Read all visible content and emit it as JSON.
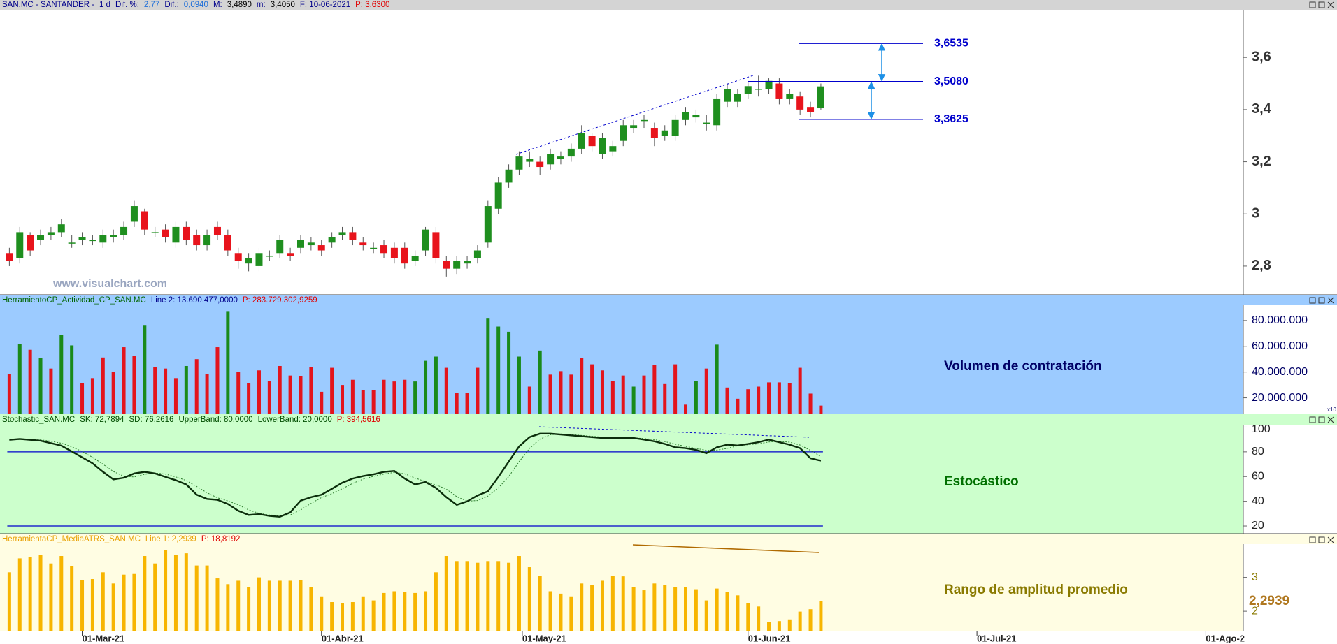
{
  "header": [
    {
      "text": "SAN.MC - SANTANDER -",
      "color": "#00008b"
    },
    {
      "text": "1 d",
      "color": "#00008b"
    },
    {
      "text": "Dif. %:",
      "color": "#00008b"
    },
    {
      "text": "2,77",
      "color": "#1e6fd9"
    },
    {
      "text": "Dif.:",
      "color": "#00008b"
    },
    {
      "text": "0,0940",
      "color": "#1e6fd9"
    },
    {
      "text": "M:",
      "color": "#00008b"
    },
    {
      "text": "3,4890",
      "color": "#000000"
    },
    {
      "text": "m:",
      "color": "#00008b"
    },
    {
      "text": "3,4050",
      "color": "#000000"
    },
    {
      "text": "F: 10-06-2021",
      "color": "#00008b"
    },
    {
      "text": "P: 3,6300",
      "color": "#e00000"
    }
  ],
  "chart_data": [
    {
      "type": "candlestick",
      "watermark": "www.visualchart.com",
      "background": "#ffffff",
      "open": [
        2.85,
        2.83,
        2.92,
        2.9,
        2.92,
        2.93,
        2.89,
        2.9,
        2.9,
        2.89,
        2.91,
        2.92,
        2.97,
        3.01,
        2.93,
        2.94,
        2.89,
        2.95,
        2.92,
        2.88,
        2.95,
        2.92,
        2.85,
        2.81,
        2.8,
        2.84,
        2.85,
        2.85,
        2.87,
        2.88,
        2.88,
        2.89,
        2.92,
        2.93,
        2.89,
        2.87,
        2.88,
        2.87,
        2.87,
        2.82,
        2.86,
        2.93,
        2.82,
        2.79,
        2.81,
        2.83,
        2.89,
        3.02,
        3.12,
        3.17,
        3.2,
        3.2,
        3.19,
        3.21,
        3.22,
        3.25,
        3.3,
        3.23,
        3.24,
        3.28,
        3.33,
        3.36,
        3.33,
        3.3,
        3.3,
        3.36,
        3.37,
        3.35,
        3.34,
        3.43,
        3.43,
        3.46,
        3.48,
        3.48,
        3.5,
        3.44,
        3.45,
        3.41,
        3.405
      ],
      "high": [
        2.87,
        2.95,
        2.93,
        2.94,
        2.95,
        2.98,
        2.92,
        2.93,
        2.92,
        2.94,
        2.94,
        2.97,
        3.05,
        3.02,
        2.95,
        2.96,
        2.97,
        2.97,
        2.94,
        2.94,
        2.97,
        2.94,
        2.87,
        2.85,
        2.87,
        2.86,
        2.92,
        2.87,
        2.92,
        2.91,
        2.9,
        2.93,
        2.95,
        2.95,
        2.91,
        2.89,
        2.9,
        2.89,
        2.89,
        2.86,
        2.95,
        2.95,
        2.84,
        2.84,
        2.84,
        2.88,
        3.05,
        3.14,
        3.19,
        3.24,
        3.24,
        3.22,
        3.25,
        3.24,
        3.27,
        3.34,
        3.31,
        3.31,
        3.28,
        3.36,
        3.36,
        3.38,
        3.35,
        3.34,
        3.38,
        3.41,
        3.4,
        3.38,
        3.46,
        3.5,
        3.48,
        3.51,
        3.53,
        3.52,
        3.52,
        3.48,
        3.47,
        3.43,
        3.5
      ],
      "low": [
        2.8,
        2.81,
        2.84,
        2.88,
        2.9,
        2.91,
        2.87,
        2.88,
        2.88,
        2.87,
        2.89,
        2.9,
        2.95,
        2.92,
        2.91,
        2.89,
        2.87,
        2.88,
        2.86,
        2.86,
        2.9,
        2.84,
        2.79,
        2.78,
        2.78,
        2.82,
        2.83,
        2.82,
        2.85,
        2.86,
        2.84,
        2.87,
        2.9,
        2.88,
        2.86,
        2.85,
        2.83,
        2.81,
        2.79,
        2.8,
        2.84,
        2.81,
        2.76,
        2.77,
        2.79,
        2.81,
        2.87,
        3.0,
        3.1,
        3.15,
        3.18,
        3.15,
        3.17,
        3.19,
        3.2,
        3.23,
        3.24,
        3.21,
        3.22,
        3.26,
        3.31,
        3.33,
        3.26,
        3.28,
        3.28,
        3.34,
        3.35,
        3.32,
        3.32,
        3.41,
        3.41,
        3.44,
        3.45,
        3.46,
        3.42,
        3.42,
        3.38,
        3.37,
        3.4
      ],
      "close": [
        2.82,
        2.93,
        2.86,
        2.92,
        2.93,
        2.96,
        2.89,
        2.91,
        2.9,
        2.92,
        2.92,
        2.95,
        3.03,
        2.94,
        2.93,
        2.91,
        2.95,
        2.9,
        2.88,
        2.92,
        2.92,
        2.86,
        2.82,
        2.83,
        2.85,
        2.84,
        2.9,
        2.84,
        2.9,
        2.89,
        2.86,
        2.91,
        2.93,
        2.9,
        2.88,
        2.87,
        2.85,
        2.83,
        2.81,
        2.84,
        2.94,
        2.83,
        2.79,
        2.82,
        2.82,
        2.86,
        3.03,
        3.12,
        3.17,
        3.22,
        3.21,
        3.18,
        3.23,
        3.22,
        3.25,
        3.31,
        3.26,
        3.29,
        3.26,
        3.34,
        3.34,
        3.36,
        3.29,
        3.32,
        3.36,
        3.39,
        3.38,
        3.35,
        3.44,
        3.48,
        3.46,
        3.49,
        3.48,
        3.51,
        3.44,
        3.46,
        3.4,
        3.39,
        3.489
      ],
      "up_color": "#1f8f1f",
      "down_color": "#e8141c",
      "xlim": [
        -0.9,
        118.6
      ],
      "ylim": [
        2.69,
        3.78
      ],
      "yticks": [
        {
          "value": 2.8,
          "label": "2,8"
        },
        3,
        {
          "value": 3.2,
          "label": "3,2"
        },
        {
          "value": 3.4,
          "label": "3,4"
        },
        {
          "value": 3.6,
          "label": "3,6"
        }
      ],
      "levels": [
        {
          "value": 3.6535,
          "label": "3,6535"
        },
        {
          "value": 3.508,
          "label": "3,5080"
        },
        {
          "value": 3.3625,
          "label": "3,3625"
        }
      ],
      "level_color": "#0000cc"
    },
    {
      "type": "bar",
      "background": "#9ccbff",
      "label": "Volumen de contratación",
      "label_color": "#000066",
      "scale_note": "x10",
      "header": [
        {
          "text": "HerramientoCP_Actividad_CP_SAN.MC",
          "color": "#006400"
        },
        {
          "text": "Line 2: 13.690.477,0000",
          "color": "#00008b"
        },
        {
          "text": "P: 283.729.302,9259",
          "color": "#e00000"
        }
      ],
      "values": [
        38700000,
        62000000,
        57300000,
        50700000,
        42700000,
        68700000,
        60700000,
        31300000,
        35300000,
        51300000,
        40000000,
        59300000,
        52700000,
        76000000,
        44000000,
        42700000,
        35300000,
        44700000,
        50000000,
        38700000,
        59300000,
        87300000,
        40000000,
        31300000,
        41300000,
        33300000,
        44700000,
        37300000,
        36700000,
        44000000,
        24700000,
        43300000,
        30000000,
        34000000,
        26000000,
        26000000,
        34000000,
        32700000,
        34000000,
        32700000,
        48700000,
        52000000,
        43300000,
        24000000,
        24000000,
        43300000,
        82000000,
        75300000,
        71300000,
        52000000,
        28700000,
        56700000,
        38000000,
        40700000,
        38000000,
        50700000,
        46000000,
        41300000,
        33300000,
        37300000,
        28700000,
        37300000,
        45300000,
        30700000,
        46000000,
        14700000,
        33300000,
        42700000,
        61300000,
        28000000,
        19300000,
        26700000,
        28700000,
        32000000,
        32000000,
        31300000,
        43300000,
        23300000,
        14000000
      ],
      "colors": [
        "#e3141c",
        "#1a8a1a",
        "#e3141c",
        "#1a8a1a",
        "#e3141c",
        "#1a8a1a",
        "#1a8a1a",
        "#e3141c",
        "#e3141c",
        "#e3141c",
        "#e3141c",
        "#e3141c",
        "#e3141c",
        "#1a8a1a",
        "#e3141c",
        "#e3141c",
        "#e3141c",
        "#1a8a1a",
        "#e3141c",
        "#e3141c",
        "#e3141c",
        "#1a8a1a",
        "#e3141c",
        "#e3141c",
        "#e3141c",
        "#e3141c",
        "#e3141c",
        "#e3141c",
        "#e3141c",
        "#e3141c",
        "#e3141c",
        "#e3141c",
        "#e3141c",
        "#e3141c",
        "#e3141c",
        "#e3141c",
        "#e3141c",
        "#e3141c",
        "#e3141c",
        "#1a8a1a",
        "#1a8a1a",
        "#1a8a1a",
        "#e3141c",
        "#e3141c",
        "#e3141c",
        "#e3141c",
        "#1a8a1a",
        "#1a8a1a",
        "#1a8a1a",
        "#1a8a1a",
        "#e3141c",
        "#1a8a1a",
        "#e3141c",
        "#e3141c",
        "#e3141c",
        "#e3141c",
        "#e3141c",
        "#e3141c",
        "#e3141c",
        "#e3141c",
        "#1a8a1a",
        "#e3141c",
        "#e3141c",
        "#e3141c",
        "#e3141c",
        "#e3141c",
        "#1a8a1a",
        "#e3141c",
        "#1a8a1a",
        "#e3141c",
        "#e3141c",
        "#e3141c",
        "#e3141c",
        "#e3141c",
        "#e3141c",
        "#e3141c",
        "#e3141c",
        "#e3141c",
        "#e3141c"
      ],
      "xlim": [
        -0.9,
        118.6
      ],
      "ylim": [
        7300000,
        91300000
      ],
      "yticks": [
        {
          "value": 20000000,
          "label": "20.000.000"
        },
        {
          "value": 40000000,
          "label": "40.000.000"
        },
        {
          "value": 60000000,
          "label": "60.000.000"
        },
        {
          "value": 80000000,
          "label": "80.000.000"
        }
      ],
      "tick_color": "#000066"
    },
    {
      "type": "line",
      "background": "#ccffcc",
      "label": "Estocástico",
      "label_color": "#007000",
      "header": [
        {
          "text": "Stochastic_SAN.MC",
          "color": "#004d00"
        },
        {
          "text": "SK: 72,7894",
          "color": "#004d00"
        },
        {
          "text": "SD: 76,2616",
          "color": "#004d00"
        },
        {
          "text": "UpperBand: 80,0000",
          "color": "#004d00"
        },
        {
          "text": "LowerBand: 20,0000",
          "color": "#004d00"
        },
        {
          "text": "P: 394,5616",
          "color": "#e00000"
        }
      ],
      "series": [
        {
          "color": "#0b2e0b",
          "width": 2.4,
          "values": [
            89.7,
            90.4,
            89.7,
            89,
            87,
            85,
            80.3,
            75.5,
            70.7,
            63.8,
            57.7,
            59,
            62.5,
            63.8,
            62.5,
            59.7,
            57,
            53.6,
            45.3,
            41.9,
            41.2,
            37.8,
            32.3,
            28.9,
            29.6,
            28.2,
            27.5,
            31,
            40.5,
            43.3,
            45.3,
            50.1,
            55,
            58.4,
            60.4,
            61.8,
            63.8,
            64.5,
            58.4,
            53.6,
            55.6,
            50.8,
            43.3,
            37.1,
            39.9,
            44.7,
            48.1,
            59.7,
            72.1,
            84.4,
            91.9,
            94.7,
            94.7,
            94,
            93.3,
            92.6,
            91.9,
            91.2,
            91.2,
            91.2,
            91.2,
            89.9,
            88.5,
            86.4,
            83.7,
            83,
            81.6,
            78.9,
            83.7,
            85.8,
            85.1,
            86.4,
            87.8,
            89.9,
            87.8,
            85.8,
            83,
            74.8,
            72.79
          ]
        },
        {
          "color": "#2e7d2e",
          "width": 1,
          "dash": "2 2",
          "values": [
            89.7,
            90,
            89.9,
            89.7,
            88.6,
            87,
            84.1,
            80.3,
            75.5,
            70,
            64.1,
            60.2,
            59.7,
            61.8,
            62.9,
            62,
            59.7,
            56.8,
            52,
            46.9,
            42.8,
            40.3,
            37.1,
            33,
            30.3,
            28.9,
            28.4,
            28.9,
            33,
            38.3,
            43,
            46.2,
            50.1,
            54.5,
            57.9,
            60.2,
            62,
            63.4,
            62.2,
            58.8,
            55.9,
            53.3,
            49.9,
            43.7,
            40.1,
            40.6,
            44.2,
            50.8,
            60,
            72.1,
            82.8,
            90.3,
            93.8,
            94.5,
            94,
            93.3,
            92.6,
            91.9,
            91.4,
            91.2,
            91.2,
            90.8,
            89.9,
            88.3,
            86.2,
            84.4,
            82.8,
            81.2,
            81.4,
            82.8,
            84.9,
            85.8,
            86.4,
            88,
            88.5,
            87.8,
            85.5,
            81.2,
            76.26
          ]
        }
      ],
      "bands": [
        80,
        20
      ],
      "band_color": "#0000cc",
      "xlim": [
        -0.9,
        118.6
      ],
      "ylim": [
        13.8,
        101.4
      ],
      "yticks": [
        20,
        40,
        60,
        80,
        100
      ],
      "tick_color": "#222222"
    },
    {
      "type": "bar",
      "background": "#fffde3",
      "label": "Rango de amplitud promedio",
      "label_color": "#8a7a00",
      "header": [
        {
          "text": "HerramientaCP_MediaATRS_SAN.MC",
          "color": "#e8a000"
        },
        {
          "text": "Line 1: 2,2939",
          "color": "#e8a000"
        },
        {
          "text": "P: 18,8192",
          "color": "#e00000"
        }
      ],
      "values": [
        3.15,
        3.56,
        3.61,
        3.66,
        3.41,
        3.63,
        3.33,
        2.92,
        2.95,
        3.15,
        2.82,
        3.08,
        3.1,
        3.63,
        3.41,
        3.81,
        3.66,
        3.71,
        3.35,
        3.35,
        2.97,
        2.8,
        2.9,
        2.72,
        3,
        2.9,
        2.9,
        2.9,
        2.92,
        2.72,
        2.44,
        2.27,
        2.24,
        2.27,
        2.44,
        2.32,
        2.54,
        2.59,
        2.57,
        2.54,
        2.59,
        3.15,
        3.63,
        3.48,
        3.48,
        3.43,
        3.48,
        3.48,
        3.43,
        3.63,
        3.3,
        3.05,
        2.59,
        2.52,
        2.44,
        2.82,
        2.77,
        2.9,
        3.05,
        3.03,
        2.72,
        2.62,
        2.82,
        2.77,
        2.72,
        2.72,
        2.65,
        2.32,
        2.67,
        2.57,
        2.47,
        2.24,
        2.14,
        1.68,
        1.71,
        1.76,
        1.99,
        2.06,
        2.2939
      ],
      "color": "#f7b500",
      "last_value": {
        "value": 2.2939,
        "label": "2,2939"
      },
      "last_color": "#b07820",
      "xlim": [
        -0.9,
        118.6
      ],
      "ylim": [
        1.405,
        3.96
      ],
      "yticks": [
        2,
        3
      ],
      "tick_color": "#8a7a00",
      "xticks": [
        {
          "value": 7,
          "label": "01-Mar-21"
        },
        {
          "value": 30,
          "label": "01-Abr-21"
        },
        {
          "value": 49.3,
          "label": "01-May-21"
        },
        {
          "value": 71,
          "label": "01-Jun-21"
        },
        {
          "value": 93,
          "label": "01-Jul-21"
        },
        {
          "value": 115,
          "label": "01-Ago-2"
        }
      ]
    }
  ]
}
